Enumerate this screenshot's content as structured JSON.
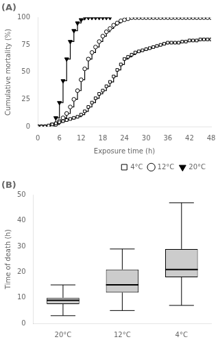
{
  "chart_data": [
    {
      "type": "line",
      "title": "(A)",
      "x_label": "Exposure time (h)",
      "y_label": "Cumulative mortality (%)",
      "xlim": [
        0,
        48
      ],
      "xticks": [
        0,
        6,
        12,
        18,
        24,
        30,
        36,
        42,
        48
      ],
      "ylim": [
        0,
        100
      ],
      "yticks": [
        0,
        25,
        50,
        75,
        100
      ],
      "grid": false,
      "legend": "lower right",
      "line_style": "steps-post",
      "series": [
        {
          "name": "4°C",
          "color": "#000000",
          "marker": "open-square",
          "x": [
            0,
            1,
            2,
            3,
            4,
            5,
            6,
            7,
            8,
            9,
            10,
            11,
            12,
            13,
            14,
            15,
            16,
            17,
            18,
            19,
            20,
            21,
            22,
            23,
            24,
            25,
            26,
            27,
            28,
            29,
            30,
            31,
            32,
            33,
            34,
            35,
            36,
            37,
            38,
            39,
            40,
            41,
            42,
            43,
            44,
            45,
            46,
            47,
            48
          ],
          "values": [
            0,
            0,
            0,
            1,
            2,
            3,
            4,
            5,
            6,
            7,
            8,
            9,
            11,
            14,
            18,
            22,
            26,
            30,
            33,
            37,
            41,
            46,
            52,
            57,
            62,
            64,
            66,
            68,
            69,
            70,
            71,
            72,
            73,
            74,
            75,
            76,
            77,
            77,
            77,
            77,
            78,
            78,
            79,
            79,
            79,
            80,
            80,
            80,
            80
          ]
        },
        {
          "name": "12°C",
          "color": "#000000",
          "marker": "open-circle",
          "x": [
            0,
            1,
            2,
            3,
            4,
            5,
            6,
            7,
            8,
            9,
            10,
            11,
            12,
            13,
            14,
            15,
            16,
            17,
            18,
            19,
            20,
            21,
            22,
            23,
            24,
            25,
            26,
            27,
            28,
            29,
            30,
            31,
            32,
            33,
            34,
            35,
            36,
            37,
            38,
            39,
            40,
            41,
            42,
            43,
            44,
            45,
            46,
            47,
            48
          ],
          "values": [
            0,
            0,
            0,
            0,
            0,
            2,
            5,
            8,
            12,
            18,
            25,
            33,
            43,
            53,
            62,
            68,
            73,
            78,
            83,
            87,
            90,
            93,
            95,
            97,
            98,
            99,
            100,
            100,
            100,
            100,
            100,
            100,
            100,
            100,
            100,
            100,
            100,
            100,
            100,
            100,
            100,
            100,
            100,
            100,
            100,
            100,
            100,
            100,
            100
          ]
        },
        {
          "name": "20°C",
          "color": "#000000",
          "marker": "filled-triangle-down",
          "x": [
            0,
            1,
            2,
            3,
            4,
            5,
            6,
            7,
            8,
            9,
            10,
            11,
            12,
            13,
            14,
            15,
            16,
            17,
            18,
            19,
            20
          ],
          "values": [
            0,
            0,
            0,
            0,
            2,
            8,
            22,
            42,
            62,
            78,
            88,
            95,
            98,
            100,
            100,
            100,
            100,
            100,
            100,
            100,
            100
          ]
        }
      ]
    },
    {
      "type": "box",
      "title": "(B)",
      "y_label": "Time of death (h)",
      "categories": [
        "20°C",
        "12°C",
        "4°C"
      ],
      "ylim": [
        0,
        50
      ],
      "yticks": [
        0,
        10,
        20,
        30,
        40,
        50
      ],
      "grid": false,
      "color": "#cccccc",
      "values": [
        {
          "median": 9,
          "q1": 7.5,
          "q3": 10,
          "whislo": 3,
          "whishi": 15
        },
        {
          "median": 15,
          "q1": 12,
          "q3": 21,
          "whislo": 5,
          "whishi": 29
        },
        {
          "median": 21,
          "q1": 18,
          "q3": 29,
          "whislo": 7,
          "whishi": 47
        }
      ]
    }
  ]
}
